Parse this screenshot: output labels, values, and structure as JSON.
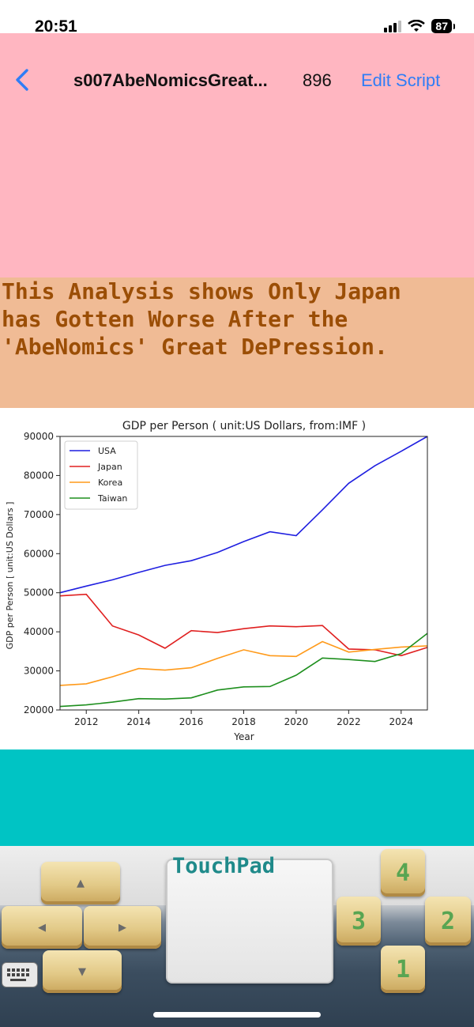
{
  "status": {
    "time": "20:51",
    "battery": "87"
  },
  "nav": {
    "title": "s007AbeNomicsGreat...",
    "count": "896",
    "edit_label": "Edit Script"
  },
  "message": {
    "lines": [
      "This Analysis shows Only Japan",
      "has Gotten Worse After the",
      "'AbeNomics' Great DePression."
    ]
  },
  "colors": {
    "pink": "#ffb6c1",
    "message_bg": "#f0bb95",
    "message_text": "#9b4e06",
    "teal": "#00c4c4",
    "link": "#2f7df6"
  },
  "chart_data": {
    "type": "line",
    "title": "GDP per Person ( unit:US Dollars, from:IMF )",
    "xlabel": "Year",
    "ylabel": "GDP per Person [ unit:US Dollars ]",
    "xlim": [
      2011,
      2025
    ],
    "ylim": [
      20000,
      90000
    ],
    "xticks": [
      2012,
      2014,
      2016,
      2018,
      2020,
      2022,
      2024
    ],
    "yticks": [
      20000,
      30000,
      40000,
      50000,
      60000,
      70000,
      80000,
      90000
    ],
    "legend_position": "top-left",
    "x": [
      2011,
      2012,
      2013,
      2014,
      2015,
      2016,
      2017,
      2018,
      2019,
      2020,
      2021,
      2022,
      2023,
      2024,
      2025
    ],
    "series": [
      {
        "name": "USA",
        "color": "#1f1fe0",
        "values": [
          50000,
          51700,
          53300,
          55200,
          57000,
          58200,
          60300,
          63100,
          65600,
          64600,
          71200,
          78000,
          82500,
          86200,
          90000
        ]
      },
      {
        "name": "Japan",
        "color": "#e02020",
        "values": [
          49200,
          49600,
          41500,
          39200,
          35800,
          40300,
          39800,
          40800,
          41500,
          41300,
          41600,
          35600,
          35400,
          33900,
          36000
        ]
      },
      {
        "name": "Korea",
        "color": "#ff9a1a",
        "values": [
          26300,
          26700,
          28500,
          30600,
          30200,
          30800,
          33200,
          35400,
          33900,
          33700,
          37500,
          34800,
          35500,
          36100,
          36400
        ]
      },
      {
        "name": "Taiwan",
        "color": "#1e8f1e",
        "values": [
          20900,
          21300,
          22000,
          22900,
          22800,
          23100,
          25100,
          25900,
          26000,
          28900,
          33300,
          32900,
          32400,
          34400,
          39600
        ]
      }
    ]
  },
  "controls": {
    "touchpad_label": "TouchPad",
    "dpad": {
      "up": "▲",
      "down": "▼",
      "left": "◀",
      "right": "▶"
    },
    "buttons": {
      "b1": "1",
      "b2": "2",
      "b3": "3",
      "b4": "4"
    }
  }
}
